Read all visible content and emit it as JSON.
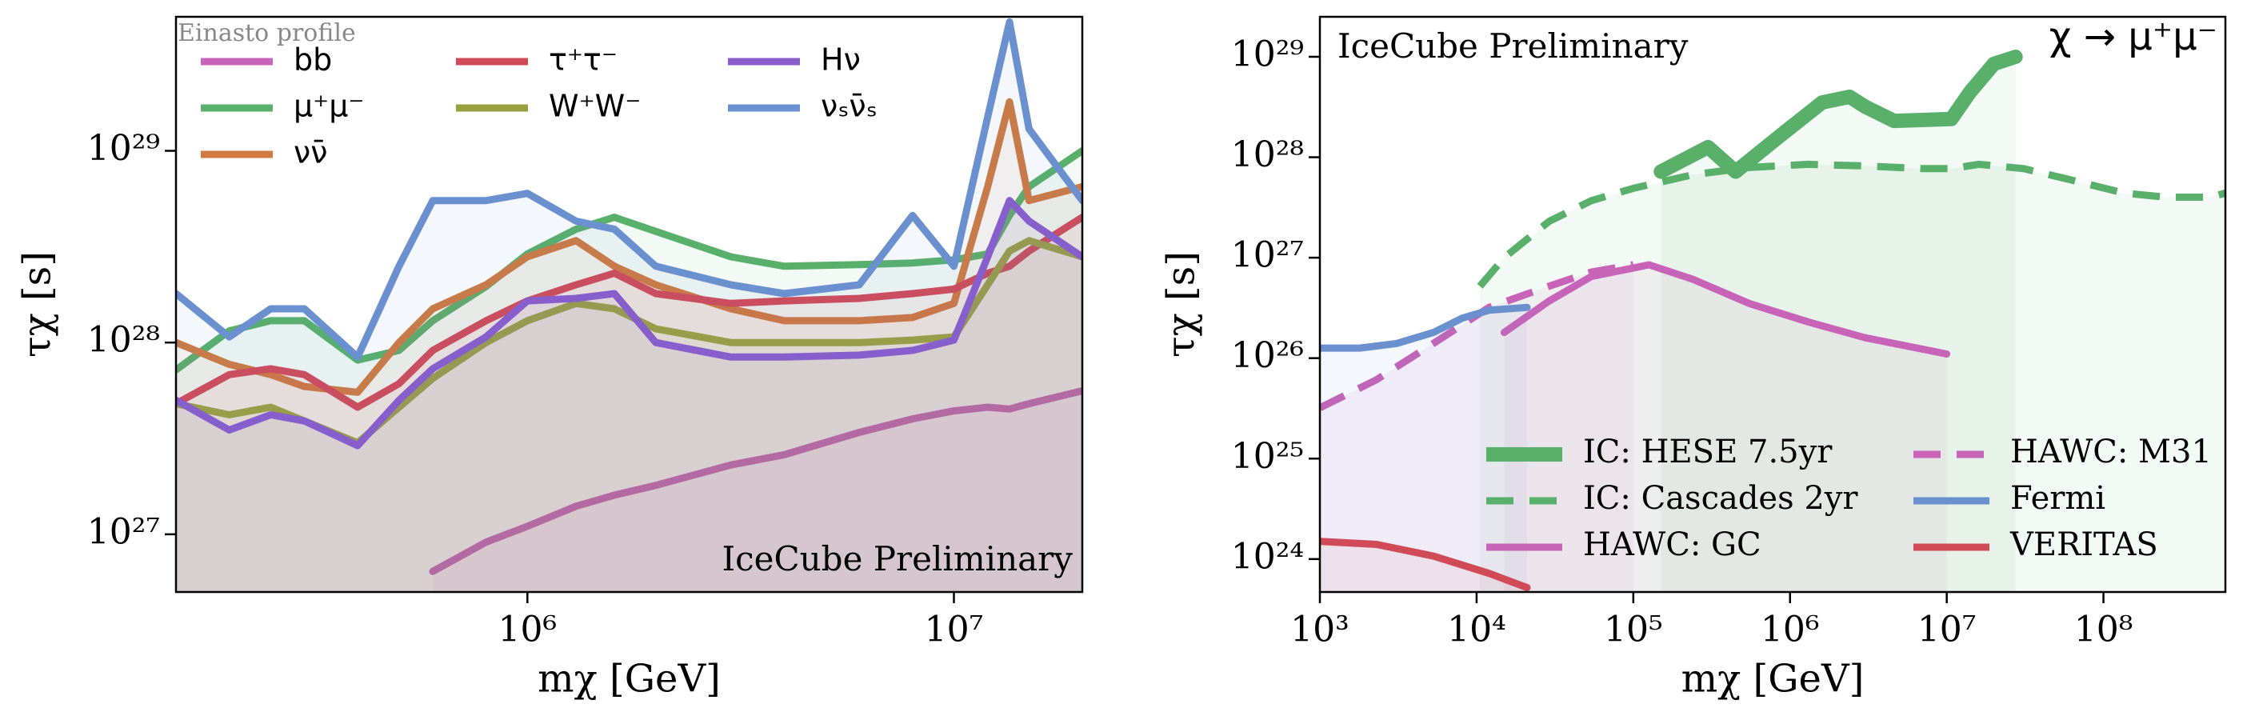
{
  "chart_data": [
    {
      "type": "line",
      "profile_label": "Einasto profile",
      "watermark": "IceCube Preliminary",
      "x_label": "mχ [GeV]",
      "y_label": "τχ [s]",
      "xscale": "log",
      "yscale": "log",
      "legend": "upper left",
      "xlim": [
        150000,
        20000000
      ],
      "ylim": [
        5e+26,
        5e+29
      ],
      "xticks": [
        {
          "value": 1000000,
          "label": "10⁶"
        },
        {
          "value": 10000000,
          "label": "10⁷"
        }
      ],
      "yticks": [
        {
          "value": 1e+27,
          "label": "10²⁷"
        },
        {
          "value": 1e+28,
          "label": "10²⁸"
        },
        {
          "value": 1e+29,
          "label": "10²⁹"
        }
      ],
      "x": [
        150000,
        200000,
        250000,
        300000,
        400000,
        500000,
        600000,
        800000,
        1000000,
        1300000,
        1600000,
        2000000,
        3000000,
        4000000,
        6000000,
        8000000,
        10000000,
        12000000,
        13500000,
        15000000,
        20000000
      ],
      "series": [
        {
          "name": "bb",
          "color": "#c864b8",
          "style": "solid",
          "values": [
            null,
            null,
            null,
            null,
            null,
            null,
            6.4e+26,
            9.1e+26,
            1.1e+27,
            1.4e+27,
            1.6e+27,
            1.8e+27,
            2.3e+27,
            2.6e+27,
            3.4e+27,
            4e+27,
            4.4e+27,
            4.6e+27,
            4.5e+27,
            4.8e+27,
            5.6e+27
          ]
        },
        {
          "name": "μ⁺μ⁻",
          "color": "#58b06a",
          "style": "solid",
          "values": [
            7.2e+27,
            1.15e+28,
            1.3e+28,
            1.3e+28,
            8.1e+27,
            9.1e+27,
            1.3e+28,
            1.96e+28,
            2.9e+28,
            3.9e+28,
            4.5e+28,
            3.8e+28,
            2.8e+28,
            2.5e+28,
            2.55e+28,
            2.6e+28,
            2.7e+28,
            2.9e+28,
            4.6e+28,
            6.5e+28,
            1e+29
          ]
        },
        {
          "name": "νν̄",
          "color": "#d07a40",
          "style": "solid",
          "values": [
            1e+28,
            7.7e+27,
            6.8e+27,
            5.9e+27,
            5.5e+27,
            1e+28,
            1.5e+28,
            2e+28,
            2.8e+28,
            3.4e+28,
            2.5e+28,
            2e+28,
            1.5e+28,
            1.3e+28,
            1.3e+28,
            1.35e+28,
            1.6e+28,
            6.5e+28,
            1.8e+29,
            5.5e+28,
            6.5e+28
          ]
        },
        {
          "name": "τ⁺τ⁻",
          "color": "#d04a58",
          "style": "solid",
          "values": [
            4.8e+27,
            6.8e+27,
            7.3e+27,
            6.8e+27,
            4.6e+27,
            6.1e+27,
            9.1e+27,
            1.3e+28,
            1.65e+28,
            2e+28,
            2.3e+28,
            1.8e+28,
            1.6e+28,
            1.65e+28,
            1.7e+28,
            1.8e+28,
            1.9e+28,
            2.3e+28,
            2.5e+28,
            3e+28,
            4.5e+28
          ]
        },
        {
          "name": "W⁺W⁻",
          "color": "#9aa040",
          "style": "solid",
          "values": [
            4.8e+27,
            4.2e+27,
            4.6e+27,
            3.9e+27,
            3e+27,
            4.6e+27,
            6.5e+27,
            1e+28,
            1.3e+28,
            1.6e+28,
            1.5e+28,
            1.18e+28,
            1e+28,
            1e+28,
            1e+28,
            1.03e+28,
            1.07e+28,
            2e+28,
            3e+28,
            3.4e+28,
            2.8e+28
          ]
        },
        {
          "name": "Hν",
          "color": "#8a5ccc",
          "style": "solid",
          "values": [
            5e+27,
            3.5e+27,
            4.2e+27,
            3.9e+27,
            2.9e+27,
            5e+27,
            7.3e+27,
            1.07e+28,
            1.65e+28,
            1.7e+28,
            1.8e+28,
            1e+28,
            8.4e+27,
            8.4e+27,
            8.6e+27,
            9.1e+27,
            1.03e+28,
            2.8e+28,
            5.5e+28,
            4.3e+28,
            2.8e+28
          ]
        },
        {
          "name": "νₛν̄ₛ",
          "color": "#6a90d0",
          "style": "solid",
          "values": [
            1.8e+28,
            1.07e+28,
            1.5e+28,
            1.5e+28,
            8.4e+27,
            2.5e+28,
            5.5e+28,
            5.5e+28,
            6e+28,
            4.3e+28,
            3.9e+28,
            2.5e+28,
            2e+28,
            1.8e+28,
            2e+28,
            4.6e+28,
            2.5e+28,
            1.5e+29,
            4.7e+29,
            1.3e+29,
            5.5e+28
          ]
        }
      ]
    },
    {
      "type": "line",
      "title": "χ → μ⁺μ⁻",
      "watermark": "IceCube Preliminary",
      "x_label": "mχ [GeV]",
      "y_label": "τχ [s]",
      "xscale": "log",
      "yscale": "log",
      "legend": "lower right",
      "xlim": [
        1000,
        600000000
      ],
      "ylim": [
        4.7e+23,
        2.5e+29
      ],
      "xticks": [
        {
          "value": 1000,
          "label": "10³"
        },
        {
          "value": 10000,
          "label": "10⁴"
        },
        {
          "value": 100000,
          "label": "10⁵"
        },
        {
          "value": 1000000,
          "label": "10⁶"
        },
        {
          "value": 10000000,
          "label": "10⁷"
        },
        {
          "value": 100000000,
          "label": "10⁸"
        }
      ],
      "yticks": [
        {
          "value": 1e+24,
          "label": "10²⁴"
        },
        {
          "value": 1e+25,
          "label": "10²⁵"
        },
        {
          "value": 1e+26,
          "label": "10²⁶"
        },
        {
          "value": 1e+27,
          "label": "10²⁷"
        },
        {
          "value": 1e+28,
          "label": "10²⁸"
        },
        {
          "value": 1e+29,
          "label": "10²⁹"
        }
      ],
      "series": [
        {
          "name": "IC: HESE 7.5yr",
          "color": "#58b06a",
          "style": "thick",
          "x": [
            150000,
            300000,
            450000,
            850000,
            1600000,
            2400000,
            3000000,
            4600000,
            10700000,
            14000000,
            20000000,
            27500000
          ],
          "values": [
            7.2e+27,
            1.26e+28,
            7.2e+27,
            1.6e+28,
            3.5e+28,
            4e+28,
            3.2e+28,
            2.3e+28,
            2.4e+28,
            4.4e+28,
            8.5e+28,
            1e+29
          ]
        },
        {
          "name": "IC: Cascades 2yr",
          "color": "#58b06a",
          "style": "dashed",
          "x": [
            10500,
            15000,
            29000,
            54000,
            100000,
            240000,
            550000,
            1300000,
            3000000,
            7000000,
            10700000,
            16000000,
            31000000,
            58000000,
            135000000,
            250000000,
            480000000,
            600000000
          ],
          "values": [
            5.2e+26,
            1e+27,
            2.3e+27,
            3.7e+27,
            4.9e+27,
            6.7e+27,
            7.9e+27,
            8.5e+27,
            8.2e+27,
            7.7e+27,
            7.7e+27,
            8.5e+27,
            7.7e+27,
            6.1e+27,
            4.4e+27,
            4e+27,
            4e+27,
            4.4e+27
          ]
        },
        {
          "name": "HAWC: GC",
          "color": "#c864b8",
          "style": "solid",
          "x": [
            15000,
            29000,
            54000,
            126000,
            240000,
            550000,
            1300000,
            3000000,
            10000000
          ],
          "values": [
            1.8e+26,
            3.7e+26,
            6.5e+26,
            8.5e+26,
            6.1e+26,
            3.5e+26,
            2.3e+26,
            1.6e+26,
            1.1e+26
          ]
        },
        {
          "name": "HAWC: M31",
          "color": "#c864b8",
          "style": "dashed",
          "x": [
            1000,
            2300,
            5300,
            12000,
            29000,
            54000,
            100000
          ],
          "values": [
            3.2e+25,
            6.1e+25,
            1.4e+26,
            3.2e+26,
            5.2e+26,
            7.2e+26,
            8.5e+26
          ]
        },
        {
          "name": "Fermi",
          "color": "#6a90d0",
          "style": "solid",
          "x": [
            1000,
            1800,
            3100,
            5300,
            8100,
            12000,
            21000
          ],
          "values": [
            1.26e+26,
            1.26e+26,
            1.4e+26,
            1.8e+26,
            2.5e+26,
            3e+26,
            3.2e+26
          ]
        },
        {
          "name": "VERITAS",
          "color": "#d04a58",
          "style": "solid",
          "x": [
            1000,
            2300,
            5300,
            12000,
            21000
          ],
          "values": [
            1.5e+24,
            1.4e+24,
            1.07e+24,
            7.2e+23,
            5.2e+23
          ]
        }
      ]
    }
  ]
}
